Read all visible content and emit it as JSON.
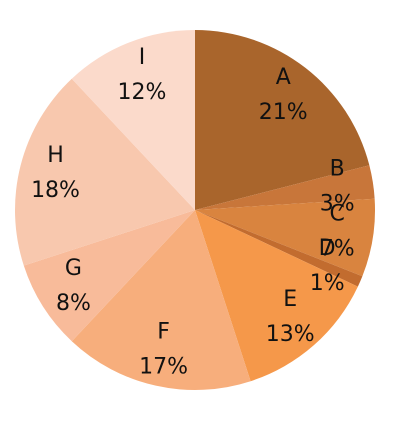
{
  "chart_data": {
    "type": "pie",
    "categories": [
      "A",
      "B",
      "C",
      "D",
      "E",
      "F",
      "G",
      "H",
      "I"
    ],
    "values": [
      21,
      3,
      7,
      1,
      13,
      17,
      8,
      18,
      12
    ],
    "value_labels": [
      "21%",
      "3%",
      "7%",
      "1%",
      "13%",
      "17%",
      "8%",
      "18%",
      "12%"
    ],
    "colors": [
      "#a9652c",
      "#c8763a",
      "#d9843f",
      "#c26c2f",
      "#f5984a",
      "#f7ae7c",
      "#f8bb9a",
      "#f8c8ae",
      "#fbdacb"
    ]
  }
}
